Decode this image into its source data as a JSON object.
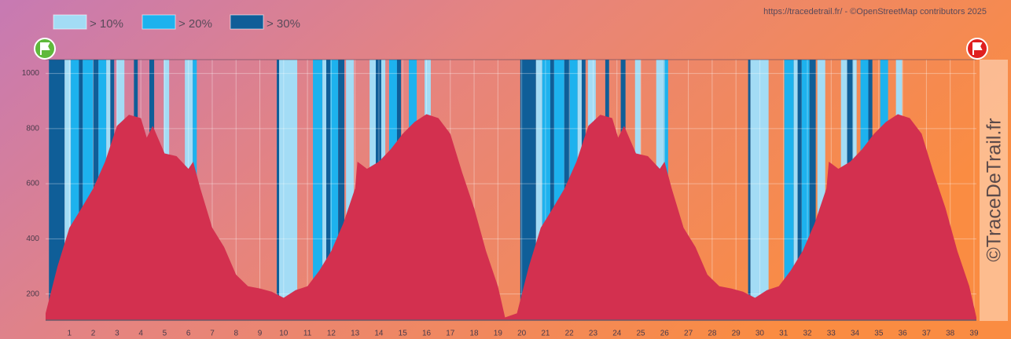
{
  "chart_data": {
    "type": "elevation",
    "attribution": "https://tracedetrail.fr/ - ©OpenStreetMap contributors 2025",
    "watermark": "©TraceDeTrail.fr",
    "x": [
      0,
      0.5,
      1,
      1.5,
      2,
      2.5,
      3,
      3.5,
      4,
      4.25,
      4.5,
      5,
      5.5,
      6,
      6.2,
      6.5,
      7,
      7.5,
      8,
      8.5,
      9,
      9.5,
      10,
      10.5,
      11,
      11.5,
      12,
      12.5,
      13,
      13.1,
      13.5,
      14,
      14.5,
      15,
      15.5,
      16,
      16.5,
      17,
      17.5,
      18,
      18.5,
      19,
      19.3,
      19.8,
      20.3,
      20.8,
      21.3,
      21.8,
      22.3,
      22.8,
      23.3,
      23.8,
      24.05,
      24.3,
      24.8,
      25.3,
      25.8,
      26,
      26.3,
      26.8,
      27.3,
      27.8,
      28.3,
      28.8,
      29.3,
      29.8,
      30.3,
      30.8,
      31.3,
      31.8,
      32.3,
      32.8,
      32.9,
      33.3,
      33.8,
      34.3,
      34.8,
      35.3,
      35.8,
      36.3,
      36.8,
      37.3,
      37.8,
      38.3,
      38.8,
      39.1
    ],
    "values": [
      130,
      300,
      440,
      510,
      583,
      680,
      810,
      850,
      838,
      767,
      810,
      710,
      700,
      654,
      680,
      583,
      440,
      370,
      270,
      228,
      220,
      208,
      186,
      214,
      228,
      285,
      356,
      455,
      583,
      680,
      654,
      680,
      725,
      781,
      824,
      852,
      838,
      781,
      640,
      512,
      356,
      228,
      115,
      130,
      300,
      440,
      510,
      583,
      680,
      810,
      850,
      838,
      767,
      810,
      710,
      700,
      654,
      680,
      583,
      440,
      370,
      270,
      228,
      220,
      208,
      186,
      214,
      228,
      285,
      356,
      455,
      583,
      680,
      654,
      680,
      725,
      781,
      824,
      852,
      838,
      781,
      640,
      512,
      356,
      228,
      115
    ],
    "color": "#d3304f",
    "slope_legend": [
      {
        "name": "> 10%",
        "color": "#a3dcf5",
        "min": 10
      },
      {
        "name": "> 20%",
        "color": "#1db2ee",
        "min": 20
      },
      {
        "name": "> 30%",
        "color": "#0f5e98",
        "min": 30
      }
    ],
    "slope_bands": [
      [
        0.14,
        0.8,
        30
      ],
      [
        0.8,
        1.06,
        10
      ],
      [
        1.06,
        1.4,
        20
      ],
      [
        1.4,
        1.56,
        30
      ],
      [
        1.56,
        1.99,
        20
      ],
      [
        1.99,
        2.22,
        30
      ],
      [
        2.22,
        2.55,
        20
      ],
      [
        2.55,
        2.72,
        10
      ],
      [
        2.72,
        2.88,
        30
      ],
      [
        2.98,
        3.31,
        10
      ],
      [
        3.71,
        3.87,
        30
      ],
      [
        4.36,
        4.56,
        30
      ],
      [
        4.96,
        5.19,
        10
      ],
      [
        5.85,
        6.18,
        10
      ],
      [
        6.18,
        6.35,
        20
      ],
      [
        9.71,
        9.81,
        30
      ],
      [
        9.81,
        10.57,
        10
      ],
      [
        11.23,
        11.63,
        20
      ],
      [
        11.63,
        11.79,
        10
      ],
      [
        11.79,
        11.96,
        30
      ],
      [
        11.96,
        12.29,
        20
      ],
      [
        12.29,
        12.55,
        30
      ],
      [
        12.62,
        12.95,
        10
      ],
      [
        13.61,
        13.87,
        10
      ],
      [
        13.87,
        14.1,
        30
      ],
      [
        14.1,
        14.27,
        10
      ],
      [
        14.43,
        14.76,
        20
      ],
      [
        14.76,
        14.93,
        30
      ],
      [
        15.26,
        15.59,
        20
      ],
      [
        15.92,
        16.18,
        10
      ],
      [
        19.94,
        20.6,
        30
      ],
      [
        20.6,
        20.86,
        10
      ],
      [
        20.86,
        21.2,
        20
      ],
      [
        21.2,
        21.36,
        30
      ],
      [
        21.36,
        21.79,
        20
      ],
      [
        21.79,
        22.02,
        30
      ],
      [
        22.02,
        22.35,
        20
      ],
      [
        22.35,
        22.52,
        10
      ],
      [
        22.52,
        22.68,
        30
      ],
      [
        22.78,
        23.11,
        10
      ],
      [
        23.51,
        23.67,
        30
      ],
      [
        24.16,
        24.36,
        30
      ],
      [
        24.76,
        24.99,
        10
      ],
      [
        25.65,
        25.98,
        10
      ],
      [
        25.98,
        26.15,
        20
      ],
      [
        29.51,
        29.61,
        30
      ],
      [
        29.61,
        30.37,
        10
      ],
      [
        31.03,
        31.43,
        20
      ],
      [
        31.43,
        31.59,
        10
      ],
      [
        31.59,
        31.76,
        30
      ],
      [
        31.76,
        32.09,
        20
      ],
      [
        32.09,
        32.35,
        30
      ],
      [
        32.42,
        32.75,
        10
      ],
      [
        33.41,
        33.67,
        10
      ],
      [
        33.67,
        33.9,
        30
      ],
      [
        33.9,
        34.07,
        10
      ],
      [
        34.23,
        34.56,
        20
      ],
      [
        34.56,
        34.73,
        30
      ],
      [
        35.06,
        35.39,
        20
      ],
      [
        35.72,
        35.98,
        10
      ]
    ],
    "xlim": [
      0,
      39.1
    ],
    "ylim": [
      105,
      1050
    ],
    "xticks": [
      1,
      2,
      3,
      4,
      5,
      6,
      7,
      8,
      9,
      10,
      11,
      12,
      13,
      14,
      15,
      16,
      17,
      18,
      19,
      20,
      21,
      22,
      23,
      24,
      25,
      26,
      27,
      28,
      29,
      30,
      31,
      32,
      33,
      34,
      35,
      36,
      37,
      38,
      39
    ],
    "yticks": [
      200,
      400,
      600,
      800,
      1000
    ],
    "grid": true
  }
}
